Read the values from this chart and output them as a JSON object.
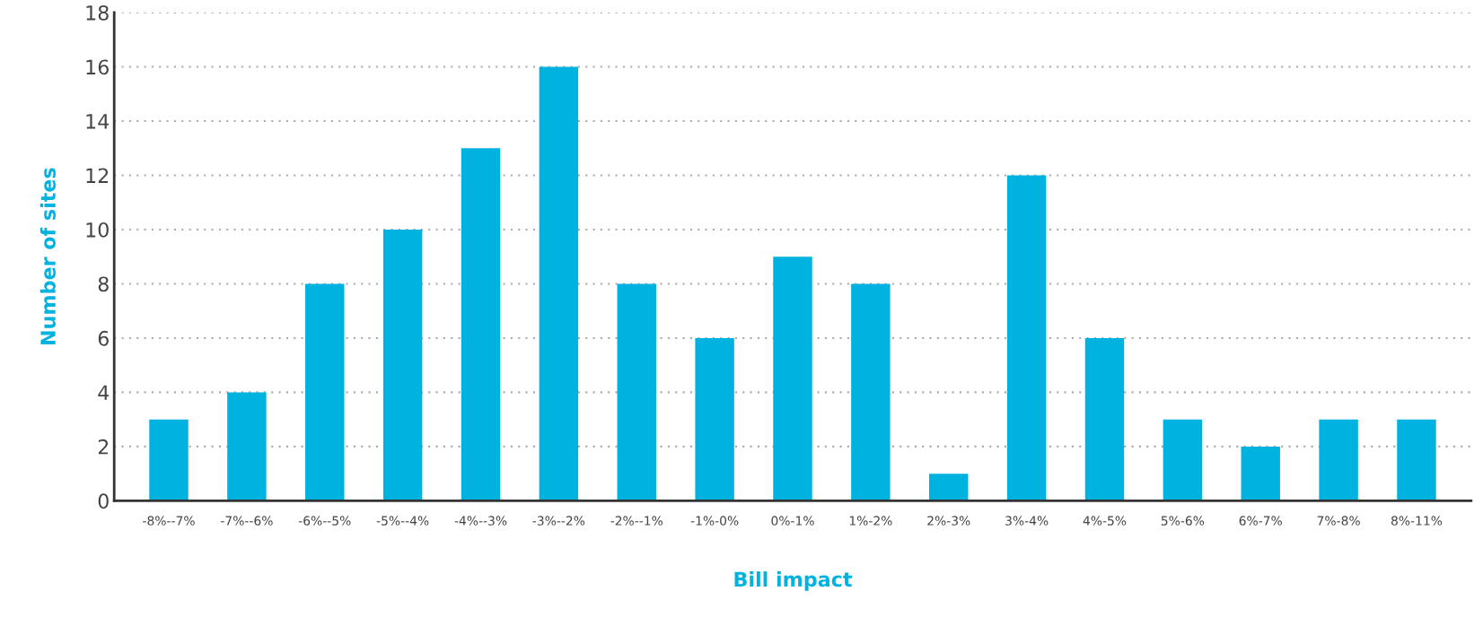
{
  "chart_data": {
    "type": "bar",
    "xlabel": "Bill impact",
    "ylabel": "Number of sites",
    "categories": [
      "-8%--7%",
      "-7%--6%",
      "-6%--5%",
      "-5%--4%",
      "-4%--3%",
      "-3%--2%",
      "-2%--1%",
      "-1%-0%",
      "0%-1%",
      "1%-2%",
      "2%-3%",
      "3%-4%",
      "4%-5%",
      "5%-6%",
      "6%-7%",
      "7%-8%",
      "8%-11%"
    ],
    "values": [
      3,
      4,
      8,
      10,
      13,
      16,
      8,
      6,
      9,
      8,
      1,
      12,
      6,
      3,
      2,
      3,
      3
    ],
    "color": "#00b2e0",
    "ylim": [
      0,
      18
    ],
    "yticks": [
      0,
      2,
      4,
      6,
      8,
      10,
      12,
      14,
      16,
      18
    ],
    "grid": "y",
    "legend": false
  }
}
